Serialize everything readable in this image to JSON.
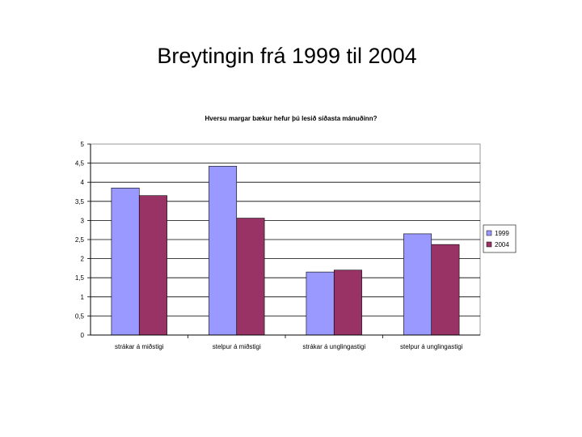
{
  "slide": {
    "title": "Breytingin frá 1999 til 2004"
  },
  "chart_data": {
    "type": "bar",
    "title": "Hversu margar bækur hefur þú lesið síðasta mánuðinn?",
    "categories": [
      "strákar á miðstigi",
      "stelpur á miðstigi",
      "strákar á unglingastigi",
      "stelpur á unglingastigi"
    ],
    "series": [
      {
        "name": "1999",
        "values": [
          3.85,
          4.42,
          1.65,
          2.65
        ],
        "color": "#9999ff"
      },
      {
        "name": "2004",
        "values": [
          3.65,
          3.06,
          1.7,
          2.37
        ],
        "color": "#993366"
      }
    ],
    "yticks": [
      "0",
      "0,5",
      "1",
      "1,5",
      "2",
      "2,5",
      "3",
      "3,5",
      "4",
      "4,5",
      "5"
    ],
    "ylim": [
      0,
      5
    ],
    "grid": true,
    "legend_position": "right"
  }
}
